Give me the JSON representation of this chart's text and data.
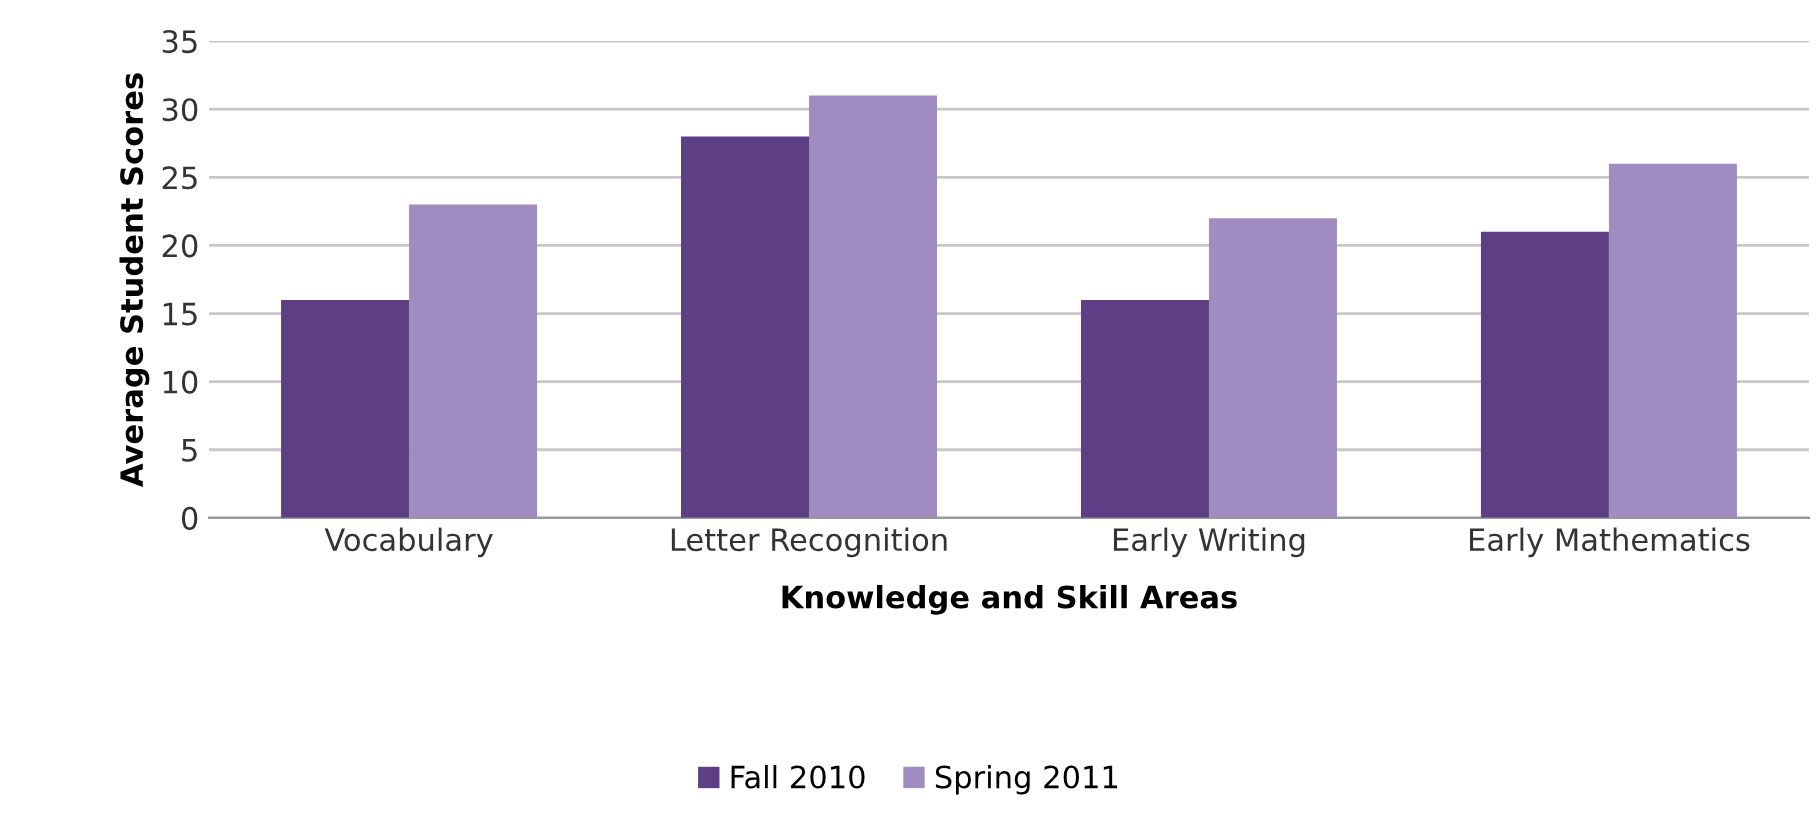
{
  "chart_data": {
    "type": "bar",
    "xlabel": "Knowledge and Skill Areas",
    "ylabel": "Average Student Scores",
    "categories": [
      "Vocabulary",
      "Letter Recognition",
      "Early Writing",
      "Early Mathematics"
    ],
    "series": [
      {
        "name": "Fall 2010",
        "color": "#5e3f85",
        "values": [
          16,
          28,
          16,
          21
        ]
      },
      {
        "name": "Spring 2011",
        "color": "#a08cc0",
        "values": [
          23,
          31,
          22,
          26
        ]
      }
    ],
    "ylim": [
      0,
      35
    ],
    "yticks": [
      0,
      5,
      10,
      15,
      20,
      25,
      30,
      35
    ],
    "grid": "y",
    "legend": "bottom"
  }
}
